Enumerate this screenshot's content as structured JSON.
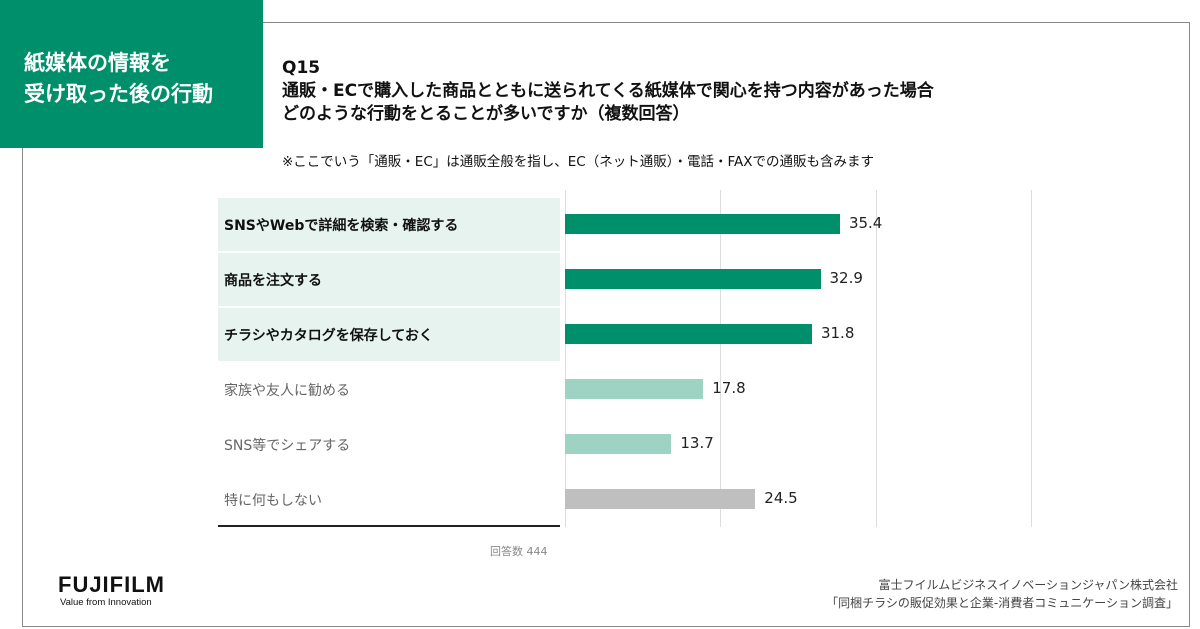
{
  "header": {
    "section_title_line1": "紙媒体の情報を",
    "section_title_line2": "受け取った後の行動",
    "question_no": "Q15",
    "question_line1": "通販・ECで購入した商品とともに送られてくる紙媒体で関心を持つ内容があった場合",
    "question_line2": "どのような行動をとることが多いですか（複数回答）",
    "note": "※ここでいう「通販・EC」は通販全般を指し、EC（ネット通販）・電話・FAXでの通販も含みます"
  },
  "chart_data": {
    "type": "bar",
    "orientation": "horizontal",
    "xlim": [
      0,
      60
    ],
    "grid": true,
    "gridlines": [
      0,
      20,
      40,
      60
    ],
    "categories": [
      "SNSやWebで詳細を検索・確認する",
      "商品を注文する",
      "チラシやカタログを保存しておく",
      "家族や友人に勧める",
      "SNS等でシェアする",
      "特に何もしない"
    ],
    "values": [
      35.4,
      32.9,
      31.8,
      17.8,
      13.7,
      24.5
    ],
    "value_labels": [
      "35.4",
      "32.9",
      "31.8",
      "17.8",
      "13.7",
      "24.5"
    ],
    "highlight": [
      true,
      true,
      true,
      false,
      false,
      false
    ],
    "colors": [
      "#008f6b",
      "#008f6b",
      "#008f6b",
      "#9ed3c4",
      "#9ed3c4",
      "#bfbfbf"
    ],
    "respondents": "回答数 444"
  },
  "footer": {
    "logo": "FUJIFILM",
    "tagline": "Value from Innovation",
    "source_line1": "富士フイルムビジネスイノベーションジャパン株式会社",
    "source_line2": "「同梱チラシの販促効果と企業-消費者コミュニケーション調査」"
  }
}
